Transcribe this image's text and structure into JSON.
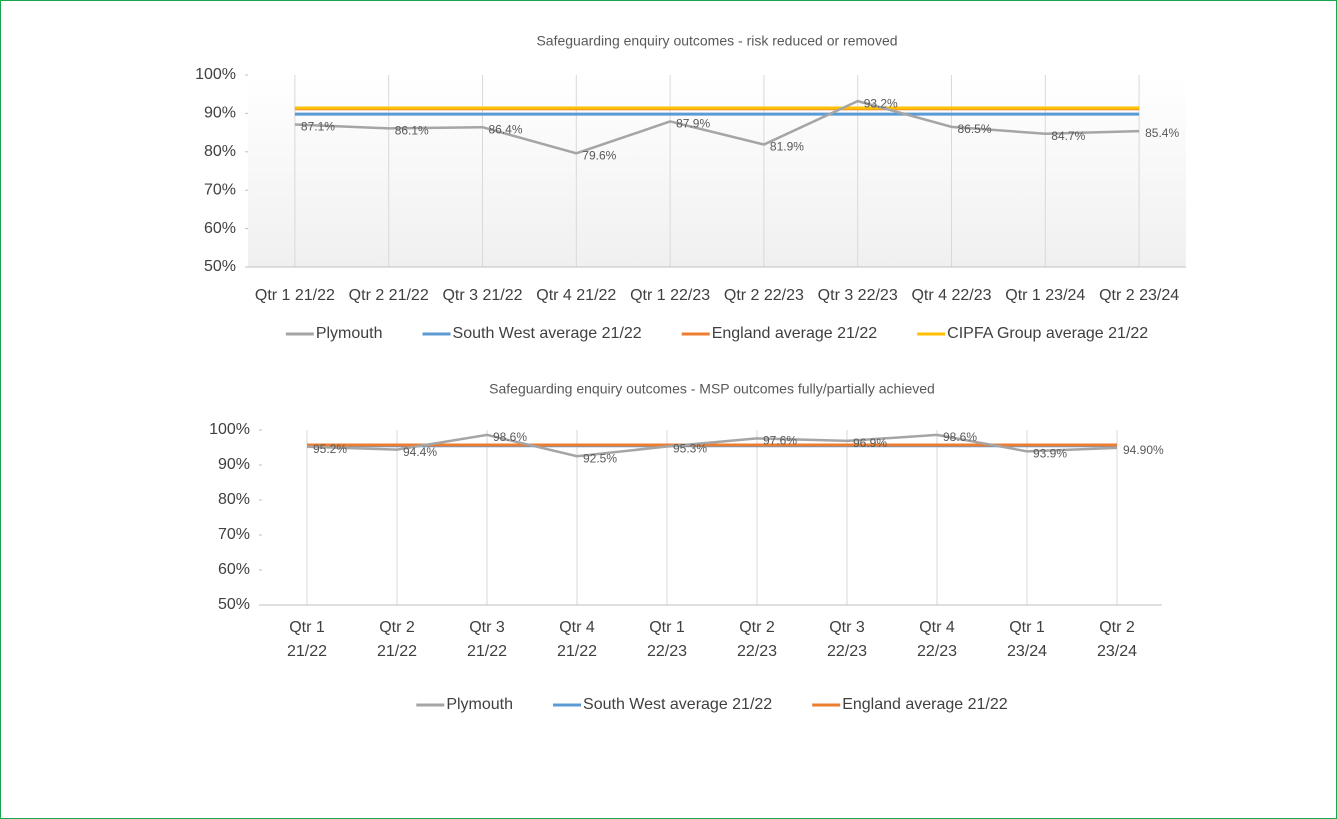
{
  "chart_data": [
    {
      "type": "line",
      "title": "Safeguarding enquiry outcomes - risk reduced or removed",
      "categories": [
        "Qtr 1 21/22",
        "Qtr 2 21/22",
        "Qtr 3 21/22",
        "Qtr 4 21/22",
        "Qtr 1 22/23",
        "Qtr 2 22/23",
        "Qtr 3 22/23",
        "Qtr 4 22/23",
        "Qtr 1 23/24",
        "Qtr 2 23/24"
      ],
      "series": [
        {
          "name": "Plymouth",
          "color": "#a5a5a5",
          "values": [
            87.1,
            86.1,
            86.4,
            79.6,
            87.9,
            81.9,
            93.2,
            86.5,
            84.7,
            85.4
          ],
          "value_labels": [
            "87.1%",
            "86.1%",
            "86.4%",
            "79.6%",
            "87.9%",
            "81.9%",
            "93.2%",
            "86.5%",
            "84.7%",
            "85.4%"
          ]
        },
        {
          "name": "South West average 21/22",
          "color": "#5b9bd5",
          "values": [
            89.8,
            89.8,
            89.8,
            89.8,
            89.8,
            89.8,
            89.8,
            89.8,
            89.8,
            89.8
          ]
        },
        {
          "name": "England average 21/22",
          "color": "#ed7d31",
          "values": [
            91.2,
            91.2,
            91.2,
            91.2,
            91.2,
            91.2,
            91.2,
            91.2,
            91.2,
            91.2
          ]
        },
        {
          "name": "CIPFA Group average 21/22",
          "color": "#ffc000",
          "values": [
            91.4,
            91.4,
            91.4,
            91.4,
            91.4,
            91.4,
            91.4,
            91.4,
            91.4,
            91.4
          ]
        }
      ],
      "ylim": [
        50,
        100
      ],
      "yticks": [
        {
          "value": 50,
          "label": "50%"
        },
        {
          "value": 60,
          "label": "60%"
        },
        {
          "value": 70,
          "label": "70%"
        },
        {
          "value": 80,
          "label": "80%"
        },
        {
          "value": 90,
          "label": "90%"
        },
        {
          "value": 100,
          "label": "100%"
        }
      ],
      "legend": "bottom"
    },
    {
      "type": "line",
      "title": "Safeguarding enquiry outcomes - MSP outcomes fully/partially achieved",
      "categories": [
        "Qtr 1 21/22",
        "Qtr 2 21/22",
        "Qtr 3 21/22",
        "Qtr 4 21/22",
        "Qtr 1 22/23",
        "Qtr 2 22/23",
        "Qtr 3 22/23",
        "Qtr 4 22/23",
        "Qtr 1 23/24",
        "Qtr 2 23/24"
      ],
      "series": [
        {
          "name": "Plymouth",
          "color": "#a5a5a5",
          "values": [
            95.2,
            94.4,
            98.6,
            92.5,
            95.3,
            97.6,
            96.9,
            98.6,
            93.9,
            94.9
          ],
          "value_labels": [
            "95.2%",
            "94.4%",
            "98.6%",
            "92.5%",
            "95.3%",
            "97.6%",
            "96.9%",
            "98.6%",
            "93.9%",
            "94.90%"
          ]
        },
        {
          "name": "South West average 21/22",
          "color": "#5b9bd5",
          "values": [
            95.5,
            95.5,
            95.5,
            95.5,
            95.5,
            95.5,
            95.5,
            95.5,
            95.5,
            95.5
          ]
        },
        {
          "name": "England average 21/22",
          "color": "#ed7d31",
          "values": [
            95.7,
            95.7,
            95.7,
            95.7,
            95.7,
            95.7,
            95.7,
            95.7,
            95.7,
            95.7
          ]
        }
      ],
      "ylim": [
        50,
        100
      ],
      "yticks": [
        {
          "value": 50,
          "label": "50%"
        },
        {
          "value": 60,
          "label": "60%"
        },
        {
          "value": 70,
          "label": "70%"
        },
        {
          "value": 80,
          "label": "80%"
        },
        {
          "value": 90,
          "label": "90%"
        },
        {
          "value": 100,
          "label": "100%"
        }
      ],
      "legend": "bottom"
    }
  ]
}
